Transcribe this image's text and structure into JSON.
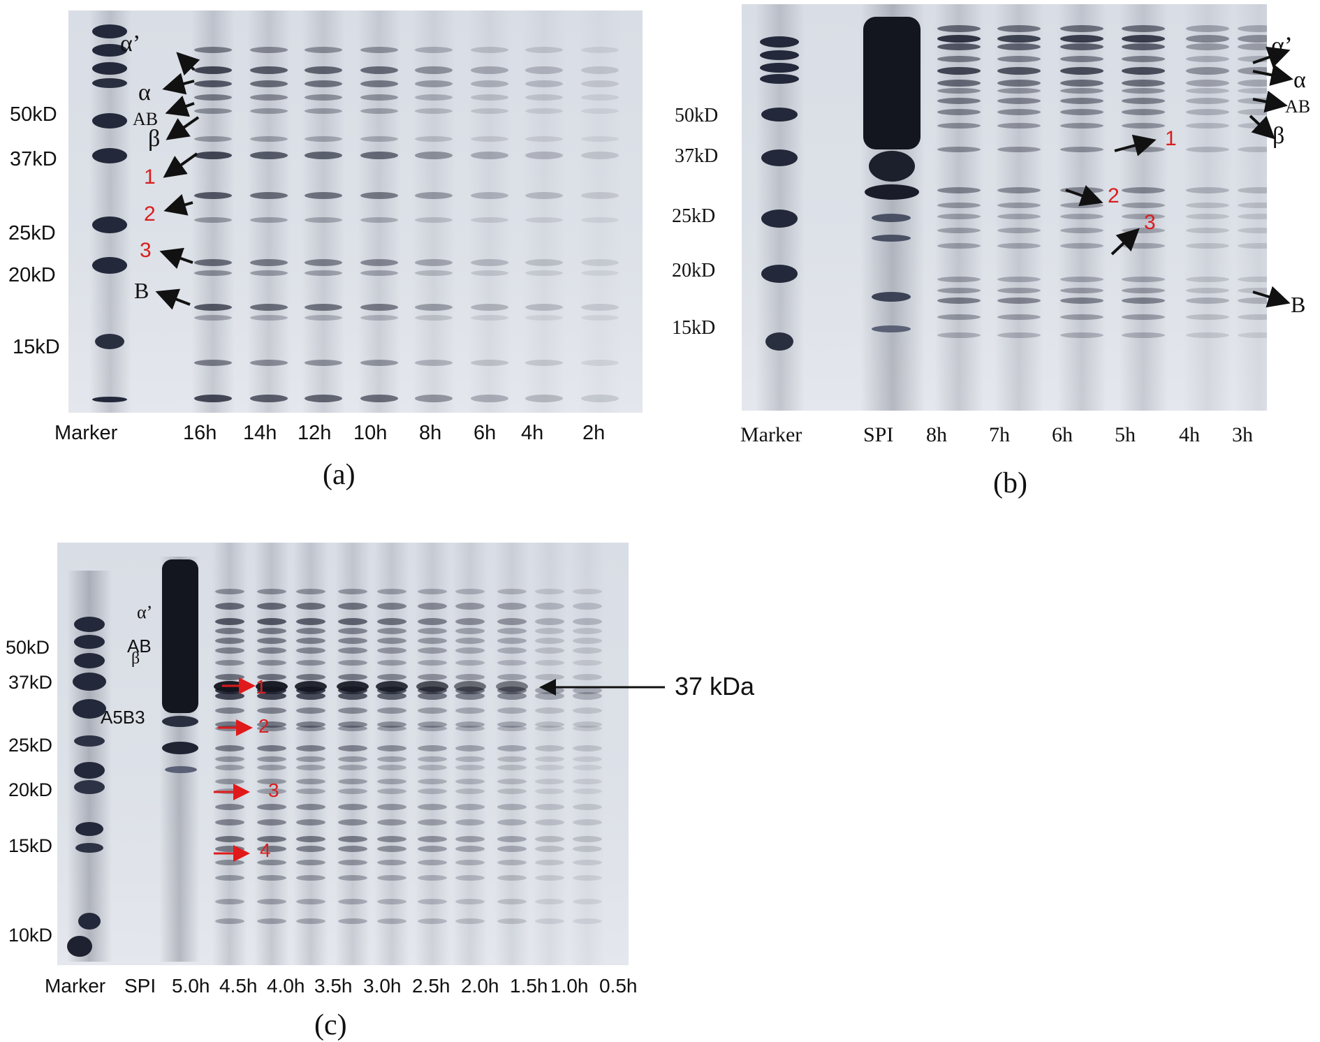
{
  "panels": {
    "a": {
      "caption": "(a)",
      "mw_labels": [
        "50kD",
        "37kD",
        "25kD",
        "20kD",
        "15kD"
      ],
      "band_labels": [
        "α’",
        "α",
        "AB",
        "β",
        "1",
        "2",
        "3",
        "B"
      ],
      "lane_labels": [
        "Marker",
        "16h",
        "14h",
        "12h",
        "10h",
        "8h",
        "6h",
        "4h",
        "2h"
      ]
    },
    "b": {
      "caption": "(b)",
      "mw_labels": [
        "50kD",
        "37kD",
        "25kD",
        "20kD",
        "15kD"
      ],
      "band_labels": [
        "α’",
        "α",
        "AB",
        "β",
        "1",
        "2",
        "3",
        "B"
      ],
      "lane_labels": [
        "Marker",
        "SPI",
        "8h",
        "7h",
        "6h",
        "5h",
        "4h",
        "3h"
      ]
    },
    "c": {
      "caption": "(c)",
      "mw_labels": [
        "50kD",
        "37kD",
        "25kD",
        "20kD",
        "15kD",
        "10kD"
      ],
      "band_labels": [
        "α’",
        "AB",
        "β",
        "A5B3",
        "1",
        "2",
        "3",
        "4"
      ],
      "lane_labels": [
        "Marker",
        "SPI",
        "5.0h",
        "4.5h",
        "4.0h",
        "3.5h",
        "3.0h",
        "2.5h",
        "2.0h",
        "1.5h",
        "1.0h",
        "0.5h"
      ],
      "callout": "37 kDa"
    }
  },
  "colors": {
    "gel": "#dde1e8",
    "band": "#2b3040",
    "red_label": "#d81e1e",
    "ink": "#111111"
  }
}
